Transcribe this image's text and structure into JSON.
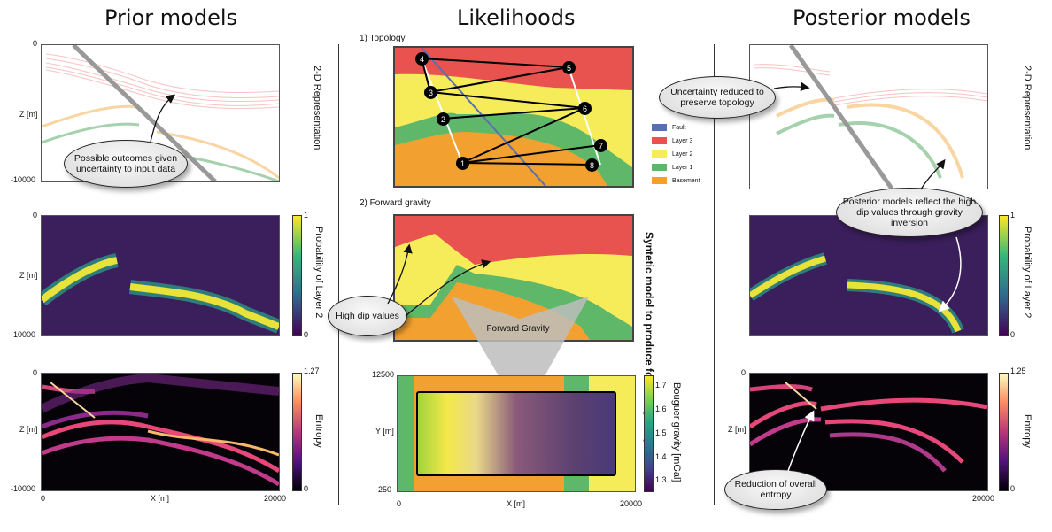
{
  "titles": {
    "prior": "Prior models",
    "likelihoods": "Likelihoods",
    "posterior": "Posterior models"
  },
  "axes": {
    "z_label": "Z [m]",
    "x_label": "X [m]",
    "y_label": "Y [m]",
    "z_top": "0",
    "z_bottom": "-10000",
    "x_min": "0",
    "x_max": "20000",
    "y_top": "12500",
    "y_bottom": "-250"
  },
  "side_labels": {
    "representation": "2-D Representation",
    "probability": "Probability of Layer 2",
    "entropy": "Entropy",
    "bouguer": "Bouguer gravity [mGal]",
    "synthetic": "Syntetic model to produce forward gravity"
  },
  "colorbars": {
    "prob_max": "1",
    "prob_min": "0",
    "entropy_prior_max": "1.27",
    "entropy_post_max": "1.25",
    "entropy_min": "0",
    "gravity_ticks": [
      "1.7",
      "1.6",
      "1.5",
      "1.4",
      "1.3"
    ]
  },
  "sections": {
    "topology": "1) Topology",
    "forward_gravity": "2) Forward gravity"
  },
  "legend": [
    {
      "label": "Fault",
      "color": "#5a6fb0"
    },
    {
      "label": "Layer 3",
      "color": "#e8524f"
    },
    {
      "label": "Layer 2",
      "color": "#f6ec5a"
    },
    {
      "label": "Layer 1",
      "color": "#5fb86a"
    },
    {
      "label": "Basement",
      "color": "#f2a130"
    }
  ],
  "nodes": [
    "1",
    "2",
    "3",
    "4",
    "5",
    "6",
    "7",
    "8"
  ],
  "callouts": {
    "possible": "Possible outcomes given uncertainty to input data",
    "high_dip": "High dip values",
    "forward_gravity": "Forward Gravity",
    "uncertainty": "Uncertainty reduced to preserve topology",
    "posterior_reflect": "Posterior models reflect the high dip values through gravity inversion",
    "entropy_reduction": "Reduction of overall entropy"
  },
  "colors": {
    "layer3": "#e8524f",
    "layer2": "#f6ec5a",
    "layer1": "#5fb86a",
    "basement": "#f2a130",
    "fault": "#5a6fb0",
    "viridis_bg": "#3b1f5c"
  }
}
